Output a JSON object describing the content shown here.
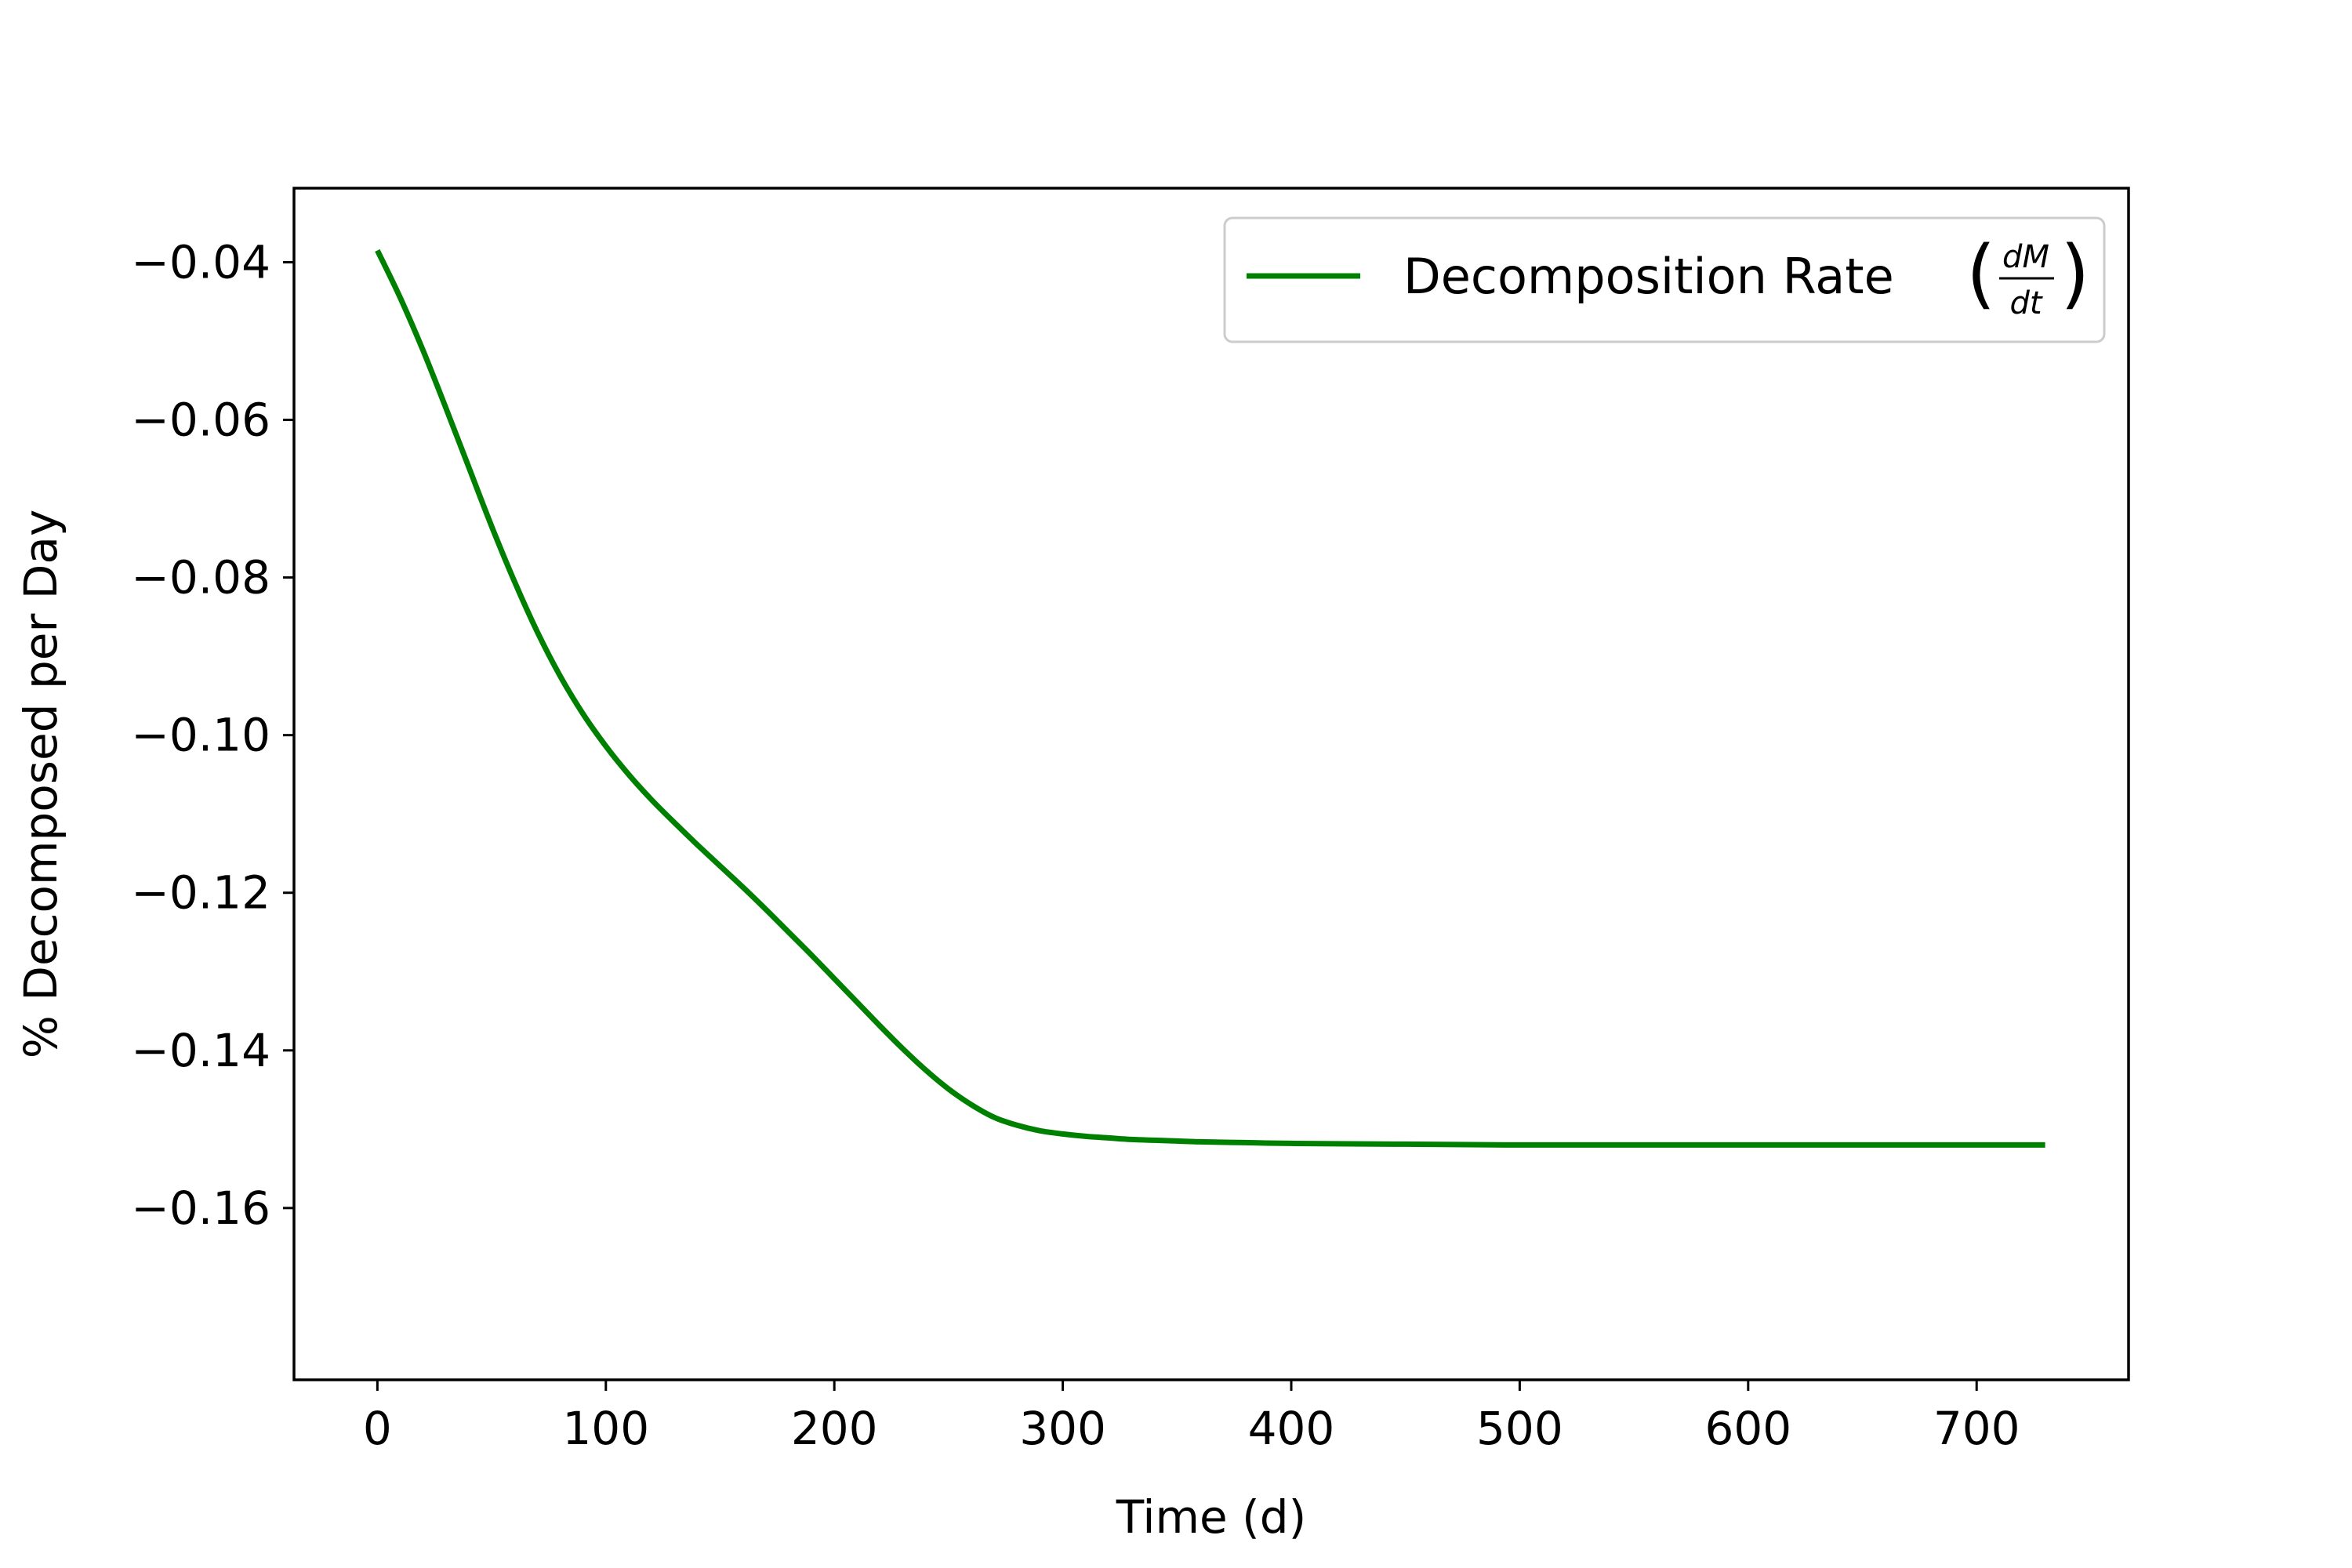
{
  "chart_data": {
    "type": "line",
    "title": "",
    "xlabel": "Time (d)",
    "ylabel": "% Decomposed per Day",
    "xlim": [
      -36.5,
      766.5
    ],
    "ylim": [
      -0.1818,
      -0.0306
    ],
    "xticks": [
      0,
      100,
      200,
      300,
      400,
      500,
      600,
      700
    ],
    "xtick_labels": [
      "0",
      "100",
      "200",
      "300",
      "400",
      "500",
      "600",
      "700"
    ],
    "yticks": [
      -0.04,
      -0.06,
      -0.08,
      -0.1,
      -0.12,
      -0.14,
      -0.16
    ],
    "ytick_labels": [
      "−0.04",
      "−0.06",
      "−0.08",
      "−0.10",
      "−0.12",
      "−0.14",
      "−0.16"
    ],
    "grid": false,
    "legend_position": "top-right",
    "series": [
      {
        "name": "Decomposition Rate",
        "legend_math_numerator": "dM",
        "legend_math_denominator": "dt",
        "color": "#008000",
        "x": [
          0,
          10,
          20,
          30,
          40,
          50,
          60,
          70,
          80,
          90,
          100,
          110,
          120,
          130,
          140,
          150,
          160,
          170,
          180,
          190,
          200,
          210,
          220,
          230,
          240,
          250,
          260,
          270,
          280,
          290,
          300,
          310,
          320,
          330,
          340,
          350,
          360,
          380,
          400,
          450,
          500,
          550,
          600,
          650,
          700,
          730
        ],
        "y": [
          -0.0385,
          -0.0445,
          -0.0512,
          -0.0585,
          -0.066,
          -0.0735,
          -0.0805,
          -0.0869,
          -0.0925,
          -0.0973,
          -0.1014,
          -0.105,
          -0.1082,
          -0.1111,
          -0.1139,
          -0.1166,
          -0.1193,
          -0.1221,
          -0.125,
          -0.1279,
          -0.1309,
          -0.1339,
          -0.1369,
          -0.1398,
          -0.1425,
          -0.1449,
          -0.1469,
          -0.1485,
          -0.1495,
          -0.1502,
          -0.1506,
          -0.1509,
          -0.1511,
          -0.1513,
          -0.1514,
          -0.1515,
          -0.1516,
          -0.1517,
          -0.1518,
          -0.1519,
          -0.152,
          -0.152,
          -0.152,
          -0.152,
          -0.152,
          -0.152
        ]
      }
    ]
  }
}
